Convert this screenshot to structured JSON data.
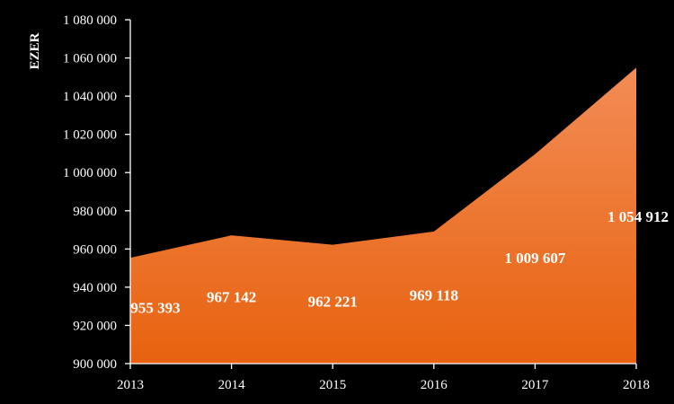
{
  "chart_data": {
    "type": "area",
    "x": [
      "2013",
      "2014",
      "2015",
      "2016",
      "2017",
      "2018"
    ],
    "series": [
      {
        "values": [
          955393,
          967142,
          962221,
          969118,
          1009607,
          1054912
        ]
      }
    ],
    "data_labels": [
      "955 393",
      "967 142",
      "962 221",
      "969 118",
      "1 009 607",
      "1 054 912"
    ],
    "ylabel": "EZER",
    "xlabel": "",
    "ylim": [
      900000,
      1080000
    ],
    "y_ticks": [
      900000,
      920000,
      940000,
      960000,
      980000,
      1000000,
      1020000,
      1040000,
      1060000,
      1080000
    ],
    "y_tick_labels": [
      "900 000",
      "920 000",
      "940 000",
      "960 000",
      "980 000",
      "1 000 000",
      "1 020 000",
      "1 040 000",
      "1 060 000",
      "1 080 000"
    ],
    "grid": false,
    "legend": "none",
    "colors": {
      "background": "#000000",
      "area_top": "#f28c55",
      "area_bottom": "#e8620f",
      "axis": "#ffffff",
      "text": "#ffffff"
    }
  }
}
